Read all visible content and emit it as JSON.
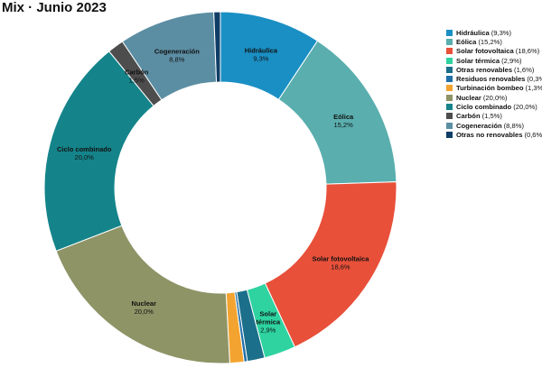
{
  "title": "Mix · Junio 2023",
  "chart_data": {
    "type": "pie",
    "title": "Mix · Junio 2023",
    "donut": true,
    "legend_position": "right",
    "series": [
      {
        "name": "Hidráulica",
        "value": 9.3,
        "label": "9,3%",
        "color": "#1a8fc4"
      },
      {
        "name": "Eólica",
        "value": 15.2,
        "label": "15,2%",
        "color": "#5aaeae"
      },
      {
        "name": "Solar fotovoltaica",
        "value": 18.6,
        "label": "18,6%",
        "color": "#e8503a"
      },
      {
        "name": "Solar térmica",
        "value": 2.9,
        "label": "2,9%",
        "color": "#2ed3a0"
      },
      {
        "name": "Otras renovables",
        "value": 1.6,
        "label": "1,6%",
        "color": "#1b6f8a"
      },
      {
        "name": "Residuos renovables",
        "value": 0.3,
        "label": "0,3%",
        "color": "#1f6ea8"
      },
      {
        "name": "Turbinación bombeo",
        "value": 1.3,
        "label": "1,3%",
        "color": "#f3a430"
      },
      {
        "name": "Nuclear",
        "value": 20.0,
        "label": "20,0%",
        "color": "#8e9466"
      },
      {
        "name": "Ciclo combinado",
        "value": 20.0,
        "label": "20,0%",
        "color": "#14848a"
      },
      {
        "name": "Carbón",
        "value": 1.5,
        "label": "1,5%",
        "color": "#4d4d4d"
      },
      {
        "name": "Cogeneración",
        "value": 8.8,
        "label": "8,8%",
        "color": "#5c8ea3"
      },
      {
        "name": "Otras no renovables",
        "value": 0.6,
        "label": "0,6%",
        "color": "#0f3d66"
      }
    ],
    "slice_labels": [
      "Hidráulica",
      "Eólica",
      "Solar fotovoltaica",
      "Solar térmica",
      "Nuclear",
      "Ciclo combinado",
      "Carbón",
      "Cogeneración"
    ]
  }
}
